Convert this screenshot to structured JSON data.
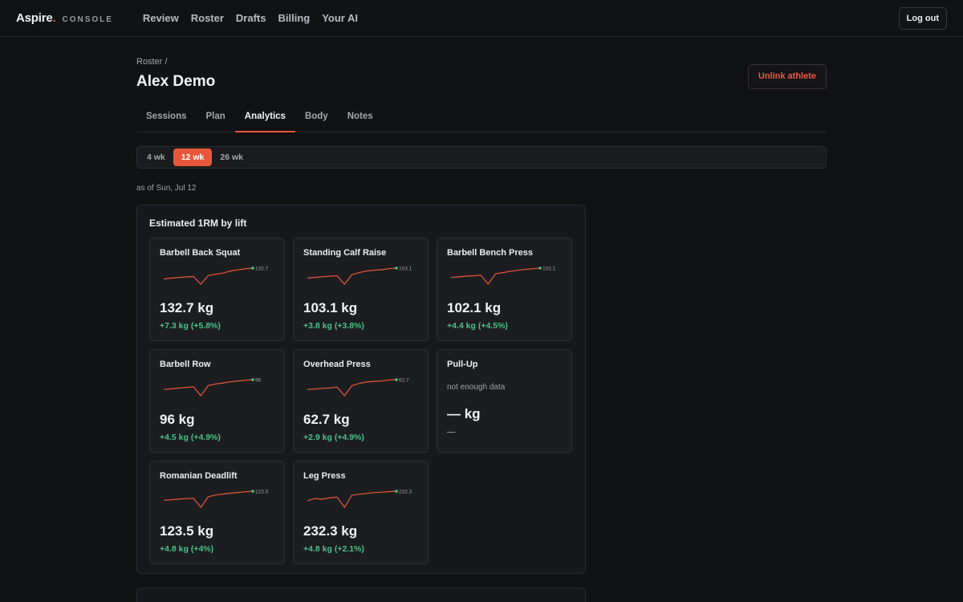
{
  "brand": {
    "name": "Aspire",
    "dot": ".",
    "sub": "CONSOLE"
  },
  "nav": [
    "Review",
    "Roster",
    "Drafts",
    "Billing",
    "Your AI"
  ],
  "logout_label": "Log out",
  "breadcrumb": "Roster /",
  "athlete_name": "Alex Demo",
  "unlink_label": "Unlink athlete",
  "tabs": [
    "Sessions",
    "Plan",
    "Analytics",
    "Body",
    "Notes"
  ],
  "active_tab": "Analytics",
  "ranges": [
    "4 wk",
    "12 wk",
    "26 wk"
  ],
  "active_range": "12 wk",
  "as_of": "as of Sun, Jul 12",
  "panel_title": "Estimated 1RM by lift",
  "colors": {
    "accent": "#e8573a",
    "positive": "#4cc087",
    "spark": "#e8573a",
    "spark_end": "#4cc087"
  },
  "lifts": [
    {
      "name": "Barbell Back Squat",
      "value": "132.7 kg",
      "delta": "+7.3 kg (+5.8%)",
      "end_label": "132.7",
      "series": [
        125.4,
        126.0,
        126.4,
        126.8,
        127.1,
        122.0,
        127.8,
        128.6,
        129.4,
        130.8,
        131.5,
        132.2,
        132.7
      ]
    },
    {
      "name": "Standing Calf Raise",
      "value": "103.1 kg",
      "delta": "+3.8 kg (+3.8%)",
      "end_label": "103.1",
      "series": [
        99.3,
        99.6,
        99.8,
        100.0,
        100.2,
        97.0,
        100.6,
        101.4,
        102.0,
        102.3,
        102.5,
        102.9,
        103.1
      ]
    },
    {
      "name": "Barbell Bench Press",
      "value": "102.1 kg",
      "delta": "+4.4 kg (+4.5%)",
      "end_label": "102.1",
      "series": [
        97.7,
        98.0,
        98.3,
        98.5,
        98.8,
        94.6,
        99.4,
        100.0,
        100.6,
        101.1,
        101.5,
        101.8,
        102.1
      ]
    },
    {
      "name": "Barbell Row",
      "value": "96 kg",
      "delta": "+4.5 kg (+4.9%)",
      "end_label": "96",
      "series": [
        91.5,
        91.8,
        92.1,
        92.4,
        92.7,
        88.6,
        93.3,
        94.0,
        94.5,
        95.0,
        95.4,
        95.7,
        96.0
      ]
    },
    {
      "name": "Overhead Press",
      "value": "62.7 kg",
      "delta": "+2.9 kg (+4.9%)",
      "end_label": "62.7",
      "series": [
        59.8,
        59.9,
        60.1,
        60.2,
        60.5,
        57.9,
        60.9,
        61.6,
        62.0,
        62.2,
        62.3,
        62.6,
        62.7
      ]
    },
    {
      "name": "Pull-Up",
      "value": "— kg",
      "delta": "—",
      "note": "not enough data",
      "series": []
    },
    {
      "name": "Romanian Deadlift",
      "value": "123.5 kg",
      "delta": "+4.8 kg (+4%)",
      "end_label": "123.5",
      "series": [
        118.7,
        119.0,
        119.3,
        119.6,
        119.8,
        115.0,
        120.6,
        121.5,
        122.0,
        122.5,
        122.8,
        123.2,
        123.5
      ]
    },
    {
      "name": "Leg Press",
      "value": "232.3 kg",
      "delta": "+4.8 kg (+2.1%)",
      "end_label": "232.3",
      "series": [
        227.5,
        228.6,
        228.3,
        229.0,
        229.3,
        224.2,
        230.3,
        230.8,
        231.2,
        231.6,
        231.8,
        232.1,
        232.3
      ]
    }
  ]
}
